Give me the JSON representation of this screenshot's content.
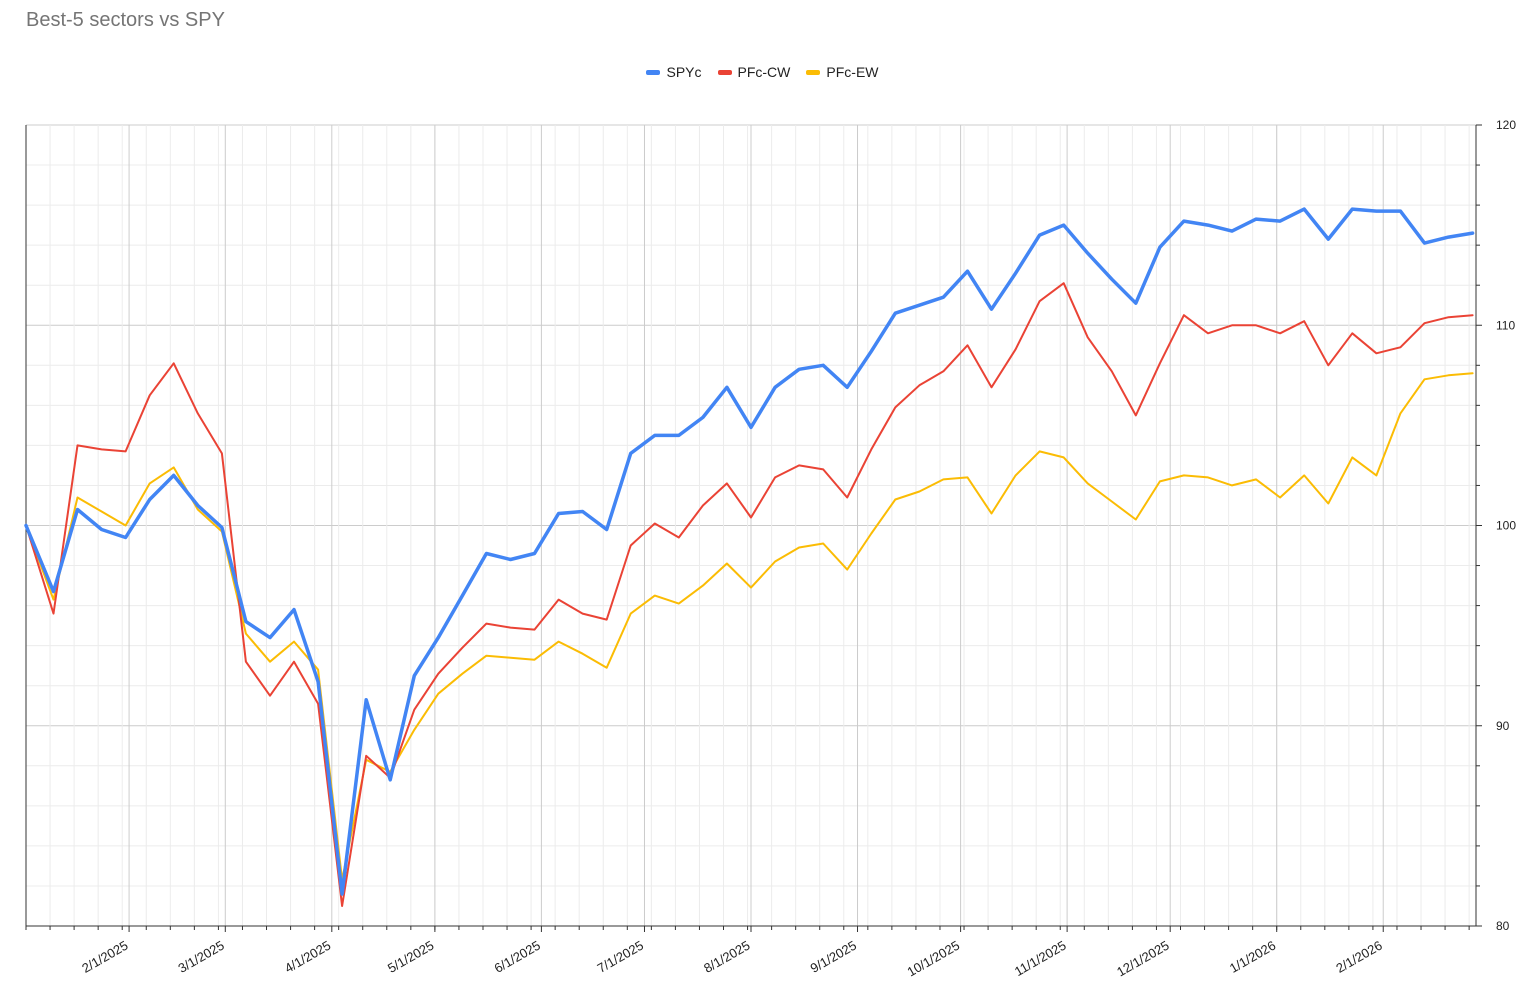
{
  "colors": {
    "SPYc": "#4285f4",
    "PFc-CW": "#ea4335",
    "PFc-EW": "#fbbc04"
  },
  "chart_data": {
    "type": "line",
    "title": "Best-5 sectors vs SPY",
    "xlabel": "",
    "ylabel": "",
    "ylim": [
      80,
      120
    ],
    "yticks": [
      80,
      90,
      100,
      110,
      120
    ],
    "xlim": [
      "2025-01-02",
      "2026-02-28"
    ],
    "xticks": [
      {
        "date": "2025-02-01",
        "label": "2/1/2025"
      },
      {
        "date": "2025-03-01",
        "label": "3/1/2025"
      },
      {
        "date": "2025-04-01",
        "label": "4/1/2025"
      },
      {
        "date": "2025-05-01",
        "label": "5/1/2025"
      },
      {
        "date": "2025-06-01",
        "label": "6/1/2025"
      },
      {
        "date": "2025-07-01",
        "label": "7/1/2025"
      },
      {
        "date": "2025-08-01",
        "label": "8/1/2025"
      },
      {
        "date": "2025-09-01",
        "label": "9/1/2025"
      },
      {
        "date": "2025-10-01",
        "label": "10/1/2025"
      },
      {
        "date": "2025-11-01",
        "label": "11/1/2025"
      },
      {
        "date": "2025-12-01",
        "label": "12/1/2025"
      },
      {
        "date": "2026-01-01",
        "label": "1/1/2026"
      },
      {
        "date": "2026-02-01",
        "label": "2/1/2026"
      }
    ],
    "legend_position": "top-center",
    "grid": true,
    "x": [
      "2025-01-02",
      "2025-01-10",
      "2025-01-17",
      "2025-01-24",
      "2025-01-31",
      "2025-02-07",
      "2025-02-14",
      "2025-02-21",
      "2025-02-28",
      "2025-03-07",
      "2025-03-14",
      "2025-03-21",
      "2025-03-28",
      "2025-04-04",
      "2025-04-11",
      "2025-04-18",
      "2025-04-25",
      "2025-05-02",
      "2025-05-09",
      "2025-05-16",
      "2025-05-23",
      "2025-05-30",
      "2025-06-06",
      "2025-06-13",
      "2025-06-20",
      "2025-06-27",
      "2025-07-04",
      "2025-07-11",
      "2025-07-18",
      "2025-07-25",
      "2025-08-01",
      "2025-08-08",
      "2025-08-15",
      "2025-08-22",
      "2025-08-29",
      "2025-09-05",
      "2025-09-12",
      "2025-09-19",
      "2025-09-26",
      "2025-10-03",
      "2025-10-10",
      "2025-10-17",
      "2025-10-24",
      "2025-10-31",
      "2025-11-07",
      "2025-11-14",
      "2025-11-21",
      "2025-11-28",
      "2025-12-05",
      "2025-12-12",
      "2025-12-19",
      "2025-12-26",
      "2026-01-02",
      "2026-01-09",
      "2026-01-16",
      "2026-01-23",
      "2026-01-30",
      "2026-02-06",
      "2026-02-13",
      "2026-02-20",
      "2026-02-27"
    ],
    "series": [
      {
        "name": "SPYc",
        "width": 3.5,
        "values": [
          100,
          96.7,
          100.8,
          99.8,
          99.4,
          101.3,
          102.5,
          101.0,
          99.9,
          95.2,
          94.4,
          95.8,
          92.2,
          81.6,
          91.3,
          87.3,
          92.5,
          94.4,
          96.5,
          98.6,
          98.3,
          98.6,
          100.6,
          100.7,
          99.8,
          103.6,
          104.5,
          104.5,
          105.4,
          106.9,
          104.9,
          106.9,
          107.8,
          108.0,
          106.9,
          108.7,
          110.6,
          111.0,
          111.4,
          112.7,
          110.8,
          112.6,
          114.5,
          115.0,
          113.6,
          112.3,
          111.1,
          113.9,
          115.2,
          115.0,
          114.7,
          115.3,
          115.2,
          115.8,
          114.3,
          115.8,
          115.7,
          115.7,
          114.1,
          114.4,
          114.6
        ]
      },
      {
        "name": "PFc-CW",
        "width": 2,
        "values": [
          100,
          95.6,
          104.0,
          103.8,
          103.7,
          106.5,
          108.1,
          105.6,
          103.6,
          93.2,
          91.5,
          93.2,
          91.1,
          81.0,
          88.5,
          87.4,
          90.8,
          92.6,
          93.9,
          95.1,
          94.9,
          94.8,
          96.3,
          95.6,
          95.3,
          99.0,
          100.1,
          99.4,
          101.0,
          102.1,
          100.4,
          102.4,
          103.0,
          102.8,
          101.4,
          103.8,
          105.9,
          107.0,
          107.7,
          109.0,
          106.9,
          108.8,
          111.2,
          112.1,
          109.4,
          107.7,
          105.5,
          108.1,
          110.5,
          109.6,
          110.0,
          110.0,
          109.6,
          110.2,
          108.0,
          109.6,
          108.6,
          108.9,
          110.1,
          110.4,
          110.5
        ]
      },
      {
        "name": "PFc-EW",
        "width": 2,
        "values": [
          100,
          96.3,
          101.4,
          100.7,
          100.0,
          102.1,
          102.9,
          100.8,
          99.7,
          94.6,
          93.2,
          94.2,
          92.8,
          82.3,
          88.3,
          87.7,
          89.8,
          91.6,
          92.6,
          93.5,
          93.4,
          93.3,
          94.2,
          93.6,
          92.9,
          95.6,
          96.5,
          96.1,
          97.0,
          98.1,
          96.9,
          98.2,
          98.9,
          99.1,
          97.8,
          99.6,
          101.3,
          101.7,
          102.3,
          102.4,
          100.6,
          102.5,
          103.7,
          103.4,
          102.1,
          101.2,
          100.3,
          102.2,
          102.5,
          102.4,
          102.0,
          102.3,
          101.4,
          102.5,
          101.1,
          103.4,
          102.5,
          105.6,
          107.3,
          107.5,
          107.6
        ]
      }
    ]
  }
}
